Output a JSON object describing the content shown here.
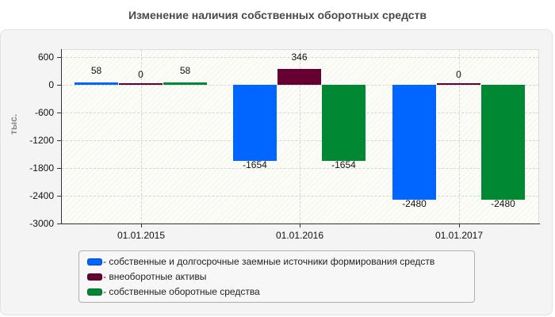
{
  "title": "Изменение наличия собственных оборотных средств",
  "colors": {
    "series_1": "#0066ff",
    "series_2": "#660033",
    "series_3": "#008833"
  },
  "chart_data": {
    "type": "bar",
    "title": "Изменение наличия собственных оборотных средств",
    "xlabel": "",
    "ylabel": "тыс.",
    "categories": [
      "01.01.2015",
      "01.01.2016",
      "01.01.2017"
    ],
    "series": [
      {
        "name": "- собственные и долгосрочные заемные источники формирования средств",
        "color": "#0066ff",
        "values": [
          58,
          -1654,
          -2480
        ]
      },
      {
        "name": "- внеоборотные активы",
        "color": "#660033",
        "values": [
          0,
          346,
          0
        ]
      },
      {
        "name": "- собственные оборотные средства",
        "color": "#008833",
        "values": [
          58,
          -1654,
          -2480
        ]
      }
    ],
    "yticks": [
      600,
      0,
      -600,
      -1200,
      -1800,
      -2400,
      -3000
    ],
    "ytick_labels": [
      "600",
      "0",
      "-600",
      "-1200",
      "-1800",
      "-2400",
      "-3000"
    ],
    "ylim": [
      -3000,
      770
    ],
    "grid": true,
    "legend_position": "bottom",
    "data_labels": [
      [
        "58",
        "0",
        "58"
      ],
      [
        "-1654",
        "346",
        "-1654"
      ],
      [
        "-2480",
        "0",
        "-2480"
      ]
    ]
  }
}
